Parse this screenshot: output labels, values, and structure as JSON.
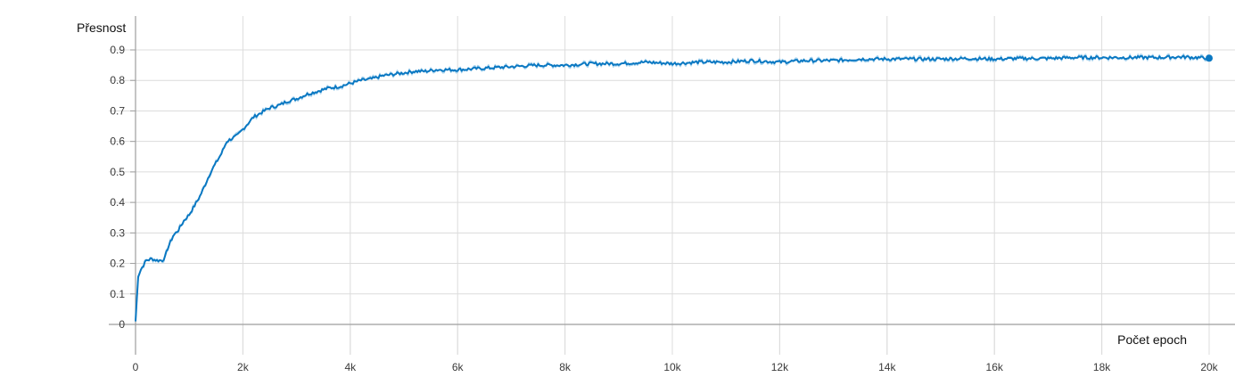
{
  "chart_data": {
    "type": "line",
    "title": "",
    "xlabel": "Počet epoch",
    "ylabel": "Přesnost",
    "xlim": [
      0,
      20000
    ],
    "ylim": [
      -0.1,
      1.0
    ],
    "x_ticks": [
      0,
      2000,
      4000,
      6000,
      8000,
      10000,
      12000,
      14000,
      16000,
      18000,
      20000
    ],
    "x_tick_labels": [
      "0",
      "2k",
      "4k",
      "6k",
      "8k",
      "10k",
      "12k",
      "14k",
      "16k",
      "18k",
      "20k"
    ],
    "y_ticks": [
      0,
      0.1,
      0.2,
      0.3,
      0.4,
      0.5,
      0.6,
      0.7,
      0.8,
      0.9
    ],
    "y_tick_labels": [
      "0",
      "0.1",
      "0.2",
      "0.3",
      "0.4",
      "0.5",
      "0.6",
      "0.7",
      "0.8",
      "0.9"
    ],
    "grid": true,
    "colors": {
      "smoothed": "#0a78c2",
      "raw": "#a9d3ee"
    },
    "series": [
      {
        "x": [
          0,
          50,
          100,
          200,
          300,
          400,
          500,
          550,
          600,
          700,
          800,
          900,
          1000,
          1100,
          1200,
          1300,
          1400,
          1500,
          1600,
          1700,
          1800,
          1900,
          2000,
          2100,
          2200,
          2300,
          2400,
          2500,
          2600,
          2700,
          2800,
          2900,
          3000,
          3200,
          3400,
          3600,
          3800,
          4000,
          4200,
          4400,
          4600,
          4800,
          5000,
          5200,
          5400,
          5600,
          5800,
          6000,
          6500,
          7000,
          7500,
          8000,
          8500,
          9000,
          9500,
          10000,
          10500,
          11000,
          11500,
          12000,
          12500,
          13000,
          13500,
          14000,
          14500,
          15000,
          15500,
          16000,
          16500,
          17000,
          17500,
          18000,
          18500,
          19000,
          19500,
          20000
        ],
        "y": [
          0.01,
          0.16,
          0.18,
          0.21,
          0.215,
          0.21,
          0.21,
          0.22,
          0.25,
          0.29,
          0.31,
          0.34,
          0.36,
          0.39,
          0.42,
          0.46,
          0.5,
          0.53,
          0.56,
          0.6,
          0.61,
          0.62,
          0.64,
          0.66,
          0.68,
          0.69,
          0.7,
          0.71,
          0.715,
          0.72,
          0.73,
          0.735,
          0.74,
          0.755,
          0.765,
          0.775,
          0.78,
          0.79,
          0.8,
          0.805,
          0.815,
          0.82,
          0.825,
          0.83,
          0.83,
          0.835,
          0.835,
          0.835,
          0.84,
          0.845,
          0.85,
          0.85,
          0.855,
          0.855,
          0.86,
          0.855,
          0.86,
          0.86,
          0.865,
          0.86,
          0.865,
          0.865,
          0.87,
          0.87,
          0.87,
          0.87,
          0.872,
          0.87,
          0.872,
          0.872,
          0.875,
          0.875,
          0.875,
          0.875,
          0.877,
          0.873
        ]
      }
    ]
  }
}
